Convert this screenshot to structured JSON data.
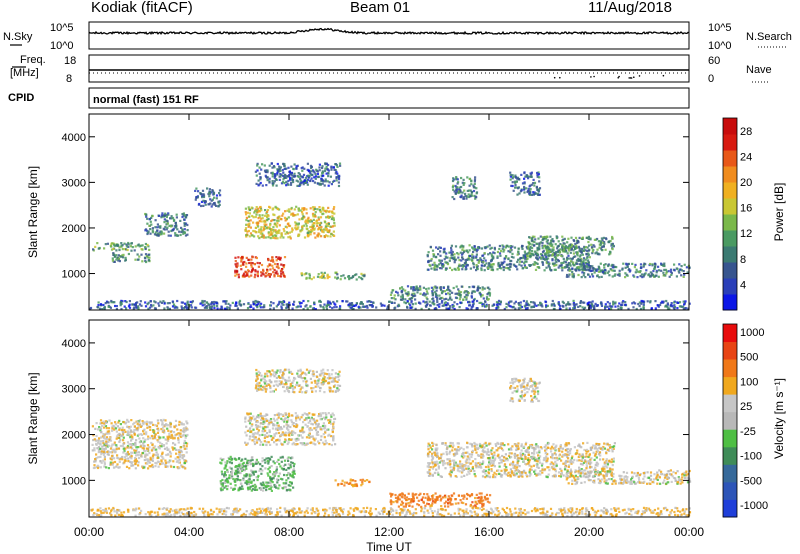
{
  "header": {
    "station": "Kodiak (fitACF)",
    "beam": "Beam 01",
    "date": "11/Aug/2018"
  },
  "panels": {
    "nsky": {
      "label": "N.Sky",
      "tick_top": "10^5",
      "tick_bottom": "10^0",
      "right_label": "N.Search",
      "right_tick_top": "10^5",
      "right_tick_bottom": "10^0"
    },
    "freq": {
      "label_line1": "Freq.",
      "label_line2": "[MHz]",
      "tick_top": "18",
      "tick_bottom": "8",
      "right_label": "Nave",
      "right_tick_top": "60",
      "right_tick_bottom": "0"
    },
    "cpid": {
      "label": "CPID",
      "value": "normal (fast) 151 RF"
    }
  },
  "colors": {
    "scatter_blue": "#2244aa",
    "ground_scatter_gray": "#b4b4b4"
  },
  "chart_data": [
    {
      "type": "heatmap",
      "ylabel": "Slant Range [km]",
      "yticks": [
        "1000",
        "2000",
        "3000",
        "4000"
      ],
      "ylim": [
        200,
        4500
      ],
      "xlim": [
        0,
        24
      ],
      "colorbar": {
        "label": "Power [dB]",
        "ticks": [
          "4",
          "8",
          "12",
          "16",
          "20",
          "24",
          "28"
        ],
        "range": [
          0,
          30
        ],
        "colors": [
          "#0b16e6",
          "#2a3fb8",
          "#37558f",
          "#3b7a72",
          "#4a9a62",
          "#7ab84a",
          "#c9c733",
          "#f0b020",
          "#f08c1e",
          "#e85818",
          "#d81a10",
          "#c80c0c"
        ]
      },
      "features": [
        {
          "t0": 0.1,
          "t1": 2.4,
          "r0": 1480,
          "r1": 1650,
          "value": 11
        },
        {
          "t0": 0.9,
          "t1": 2.4,
          "r0": 1230,
          "r1": 1430,
          "value": 10
        },
        {
          "t0": 2.2,
          "t1": 3.9,
          "r0": 1800,
          "r1": 2300,
          "value": 8
        },
        {
          "t0": 4.2,
          "t1": 5.2,
          "r0": 2450,
          "r1": 2850,
          "value": 7
        },
        {
          "t0": 5.8,
          "t1": 7.8,
          "r0": 900,
          "r1": 1350,
          "value": 25
        },
        {
          "t0": 6.2,
          "t1": 9.8,
          "r0": 1750,
          "r1": 2450,
          "value": 17
        },
        {
          "t0": 6.6,
          "t1": 10.0,
          "r0": 2900,
          "r1": 3400,
          "value": 6
        },
        {
          "t0": 8.4,
          "t1": 9.6,
          "r0": 850,
          "r1": 1000,
          "value": 14
        },
        {
          "t0": 9.8,
          "t1": 11.0,
          "r0": 850,
          "r1": 1000,
          "value": 12
        },
        {
          "t0": 12.0,
          "t1": 16.0,
          "r0": 400,
          "r1": 700,
          "value": 9
        },
        {
          "t0": 14.5,
          "t1": 15.5,
          "r0": 2600,
          "r1": 3100,
          "value": 8
        },
        {
          "t0": 16.8,
          "t1": 18.0,
          "r0": 2700,
          "r1": 3200,
          "value": 7
        },
        {
          "t0": 13.5,
          "t1": 20.0,
          "r0": 1050,
          "r1": 1600,
          "value": 9
        },
        {
          "t0": 17.5,
          "t1": 21.0,
          "r0": 1400,
          "r1": 1800,
          "value": 10
        },
        {
          "t0": 19.0,
          "t1": 24.0,
          "r0": 900,
          "r1": 1200,
          "value": 8
        },
        {
          "t0": 0.0,
          "t1": 24.0,
          "r0": 200,
          "r1": 380,
          "value": 6
        }
      ]
    },
    {
      "type": "heatmap",
      "ylabel": "Slant Range [km]",
      "yticks": [
        "1000",
        "2000",
        "3000",
        "4000"
      ],
      "ylim": [
        200,
        4500
      ],
      "xlim": [
        0,
        24
      ],
      "colorbar": {
        "label": "Velocity [m s⁻¹]",
        "ticks": [
          "1000",
          "500",
          "100",
          "25",
          "-25",
          "-100",
          "-500",
          "-1000"
        ],
        "colors": [
          "#1f3fd9",
          "#2d55b8",
          "#36699a",
          "#3f8c58",
          "#4fbf44",
          "#b8b8b8",
          "#c6c6c6",
          "#f0a81e",
          "#f07818",
          "#e84414",
          "#e80c0c"
        ]
      },
      "features": [
        {
          "t0": 0.1,
          "t1": 3.9,
          "r0": 1230,
          "r1": 2300,
          "value": 0
        },
        {
          "t0": 5.2,
          "t1": 8.2,
          "r0": 750,
          "r1": 1500,
          "value": 80
        },
        {
          "t0": 6.2,
          "t1": 9.8,
          "r0": 1750,
          "r1": 2450,
          "value": 0
        },
        {
          "t0": 6.6,
          "t1": 10.0,
          "r0": 2900,
          "r1": 3400,
          "value": 0
        },
        {
          "t0": 9.8,
          "t1": 11.2,
          "r0": 850,
          "r1": 1000,
          "value": -120
        },
        {
          "t0": 12.0,
          "t1": 16.0,
          "r0": 400,
          "r1": 700,
          "value": -150
        },
        {
          "t0": 13.5,
          "t1": 21.0,
          "r0": 1050,
          "r1": 1800,
          "value": 0
        },
        {
          "t0": 16.8,
          "t1": 18.0,
          "r0": 2700,
          "r1": 3200,
          "value": 0
        },
        {
          "t0": 19.0,
          "t1": 24.0,
          "r0": 900,
          "r1": 1200,
          "value": 0
        },
        {
          "t0": 0.0,
          "t1": 24.0,
          "r0": 200,
          "r1": 380,
          "value": -30
        }
      ]
    }
  ],
  "x_axis": {
    "label": "Time UT",
    "ticks": [
      "00:00",
      "04:00",
      "08:00",
      "12:00",
      "16:00",
      "20:00",
      "00:00"
    ]
  }
}
